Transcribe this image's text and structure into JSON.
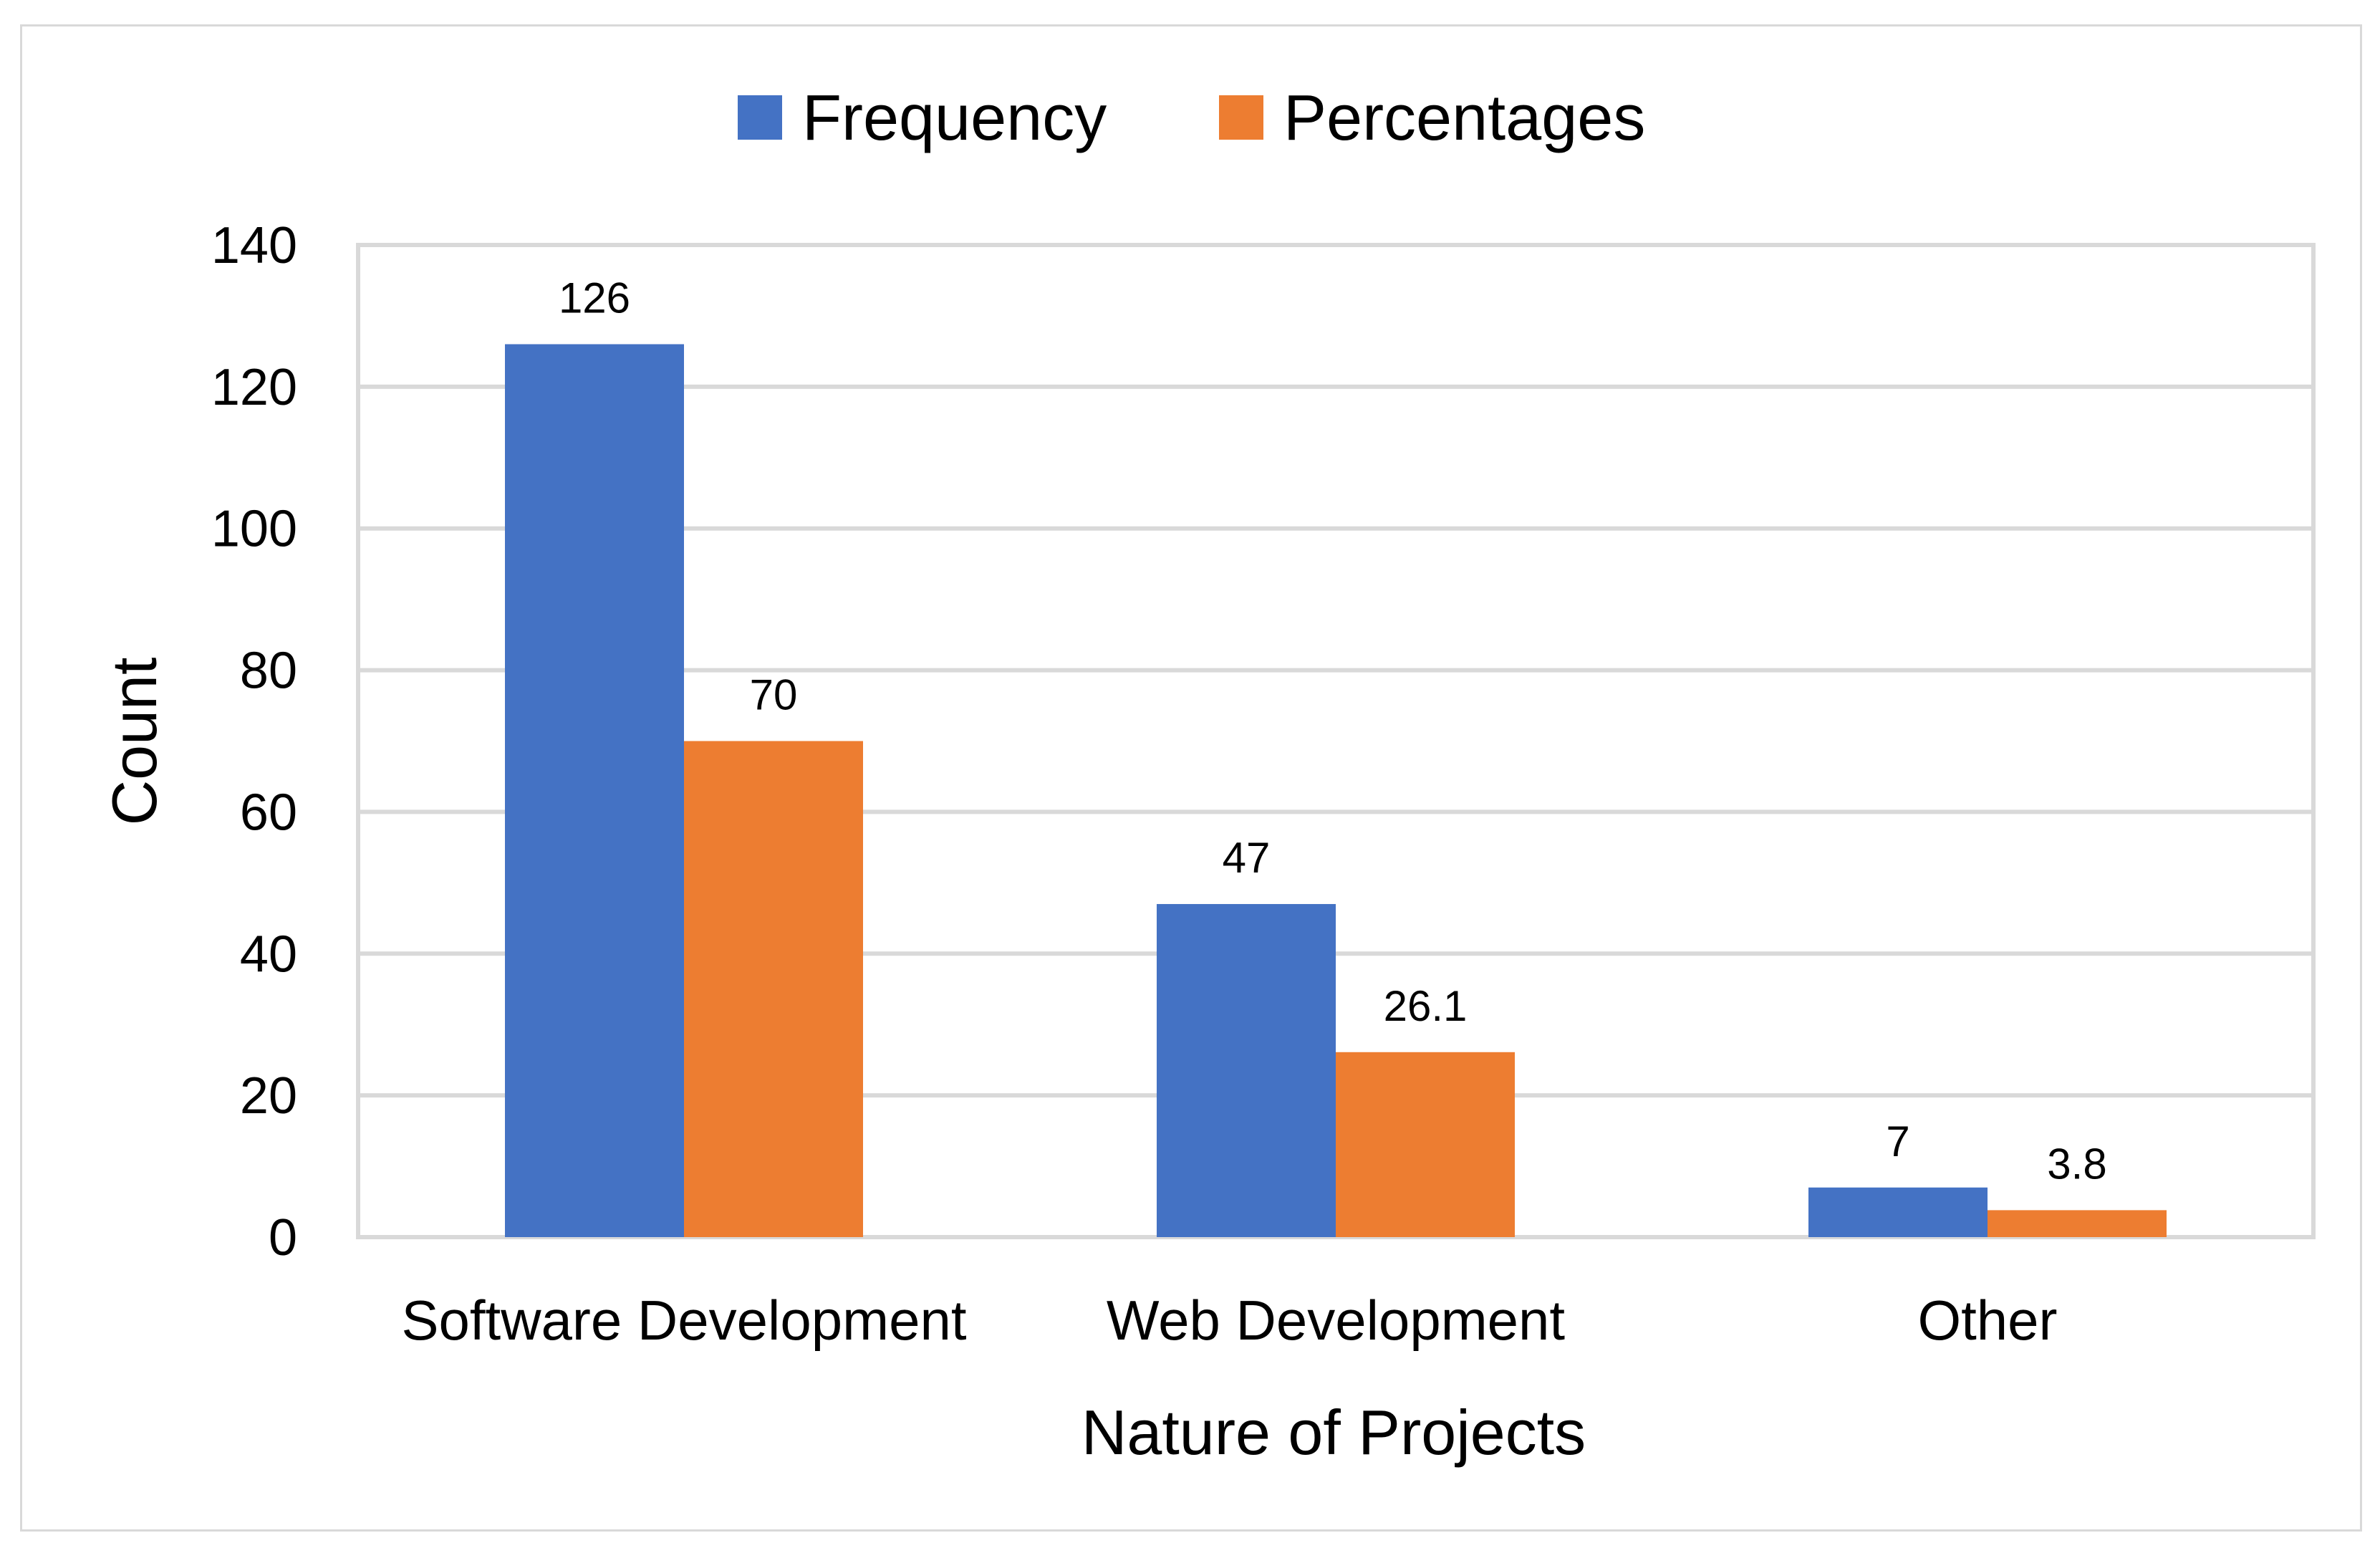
{
  "chart_data": {
    "type": "bar",
    "title": "",
    "xlabel": "Nature of Projects",
    "ylabel": "Count",
    "categories": [
      "Software Development",
      "Web Development",
      "Other"
    ],
    "series": [
      {
        "name": "Frequency",
        "color": "#4472c4",
        "values": [
          126,
          47,
          7
        ],
        "labels": [
          "126",
          "47",
          "7"
        ]
      },
      {
        "name": "Percentages",
        "color": "#ed7d31",
        "values": [
          70,
          26.1,
          3.8
        ],
        "labels": [
          "70",
          "26.1",
          "3.8"
        ]
      }
    ],
    "ylim": [
      0,
      140
    ],
    "yticks": [
      "0",
      "20",
      "40",
      "60",
      "80",
      "100",
      "120",
      "140"
    ],
    "grid": true,
    "legend": "top-center"
  }
}
